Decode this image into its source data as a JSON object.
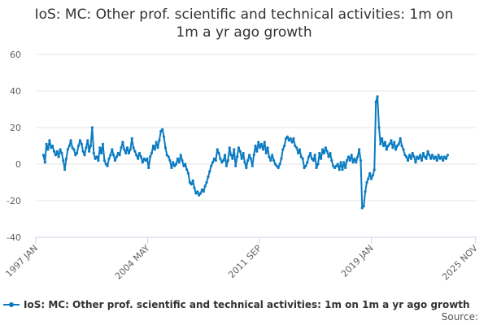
{
  "chart_data": {
    "type": "line",
    "title": "IoS: MC: Other prof. scientific and technical activities: 1m on 1m a yr ago growth",
    "title_lines": [
      "IoS: MC: Other prof. scientific and technical activities: 1m on",
      "1m a yr ago growth"
    ],
    "xlabel": "",
    "ylabel": "",
    "ylim": [
      -40,
      60
    ],
    "yticks": [
      60,
      40,
      20,
      0,
      -20,
      -40
    ],
    "xlim": [
      1997.0,
      2025.9
    ],
    "xticks": [
      {
        "label": "1997 JAN",
        "x": 1997.0
      },
      {
        "label": "2004 MAY",
        "x": 2004.33
      },
      {
        "label": "2011 SEP",
        "x": 2011.67
      },
      {
        "label": "2019 JAN",
        "x": 2019.0
      },
      {
        "label": "2025 NOV",
        "x": 2025.83
      }
    ],
    "grid": true,
    "legend_position": "bottom-left",
    "line_color": "#0b7bc1",
    "series": [
      {
        "name": "IoS: MC: Other prof. scientific and technical activities: 1m on 1m a yr ago growth",
        "points": [
          [
            1997.5,
            5
          ],
          [
            1997.6,
            1
          ],
          [
            1997.7,
            11
          ],
          [
            1997.8,
            8
          ],
          [
            1997.9,
            13
          ],
          [
            1998.0,
            9
          ],
          [
            1998.1,
            10
          ],
          [
            1998.2,
            7
          ],
          [
            1998.3,
            5
          ],
          [
            1998.4,
            7
          ],
          [
            1998.5,
            4
          ],
          [
            1998.6,
            8
          ],
          [
            1998.7,
            6
          ],
          [
            1998.8,
            2
          ],
          [
            1998.9,
            -3
          ],
          [
            1999.0,
            3
          ],
          [
            1999.1,
            8
          ],
          [
            1999.2,
            10
          ],
          [
            1999.3,
            13
          ],
          [
            1999.4,
            9
          ],
          [
            1999.5,
            8
          ],
          [
            1999.6,
            5
          ],
          [
            1999.7,
            6
          ],
          [
            1999.8,
            10
          ],
          [
            1999.9,
            13
          ],
          [
            2000.0,
            11
          ],
          [
            2000.1,
            7
          ],
          [
            2000.2,
            5
          ],
          [
            2000.3,
            9
          ],
          [
            2000.4,
            13
          ],
          [
            2000.5,
            7
          ],
          [
            2000.6,
            10
          ],
          [
            2000.7,
            20
          ],
          [
            2000.8,
            6
          ],
          [
            2000.9,
            3
          ],
          [
            2001.0,
            4
          ],
          [
            2001.1,
            2
          ],
          [
            2001.2,
            9
          ],
          [
            2001.3,
            6
          ],
          [
            2001.4,
            11
          ],
          [
            2001.5,
            2
          ],
          [
            2001.6,
            0
          ],
          [
            2001.7,
            -1
          ],
          [
            2001.8,
            3
          ],
          [
            2001.9,
            5
          ],
          [
            2002.0,
            8
          ],
          [
            2002.1,
            5
          ],
          [
            2002.2,
            2
          ],
          [
            2002.3,
            4
          ],
          [
            2002.4,
            6
          ],
          [
            2002.5,
            5
          ],
          [
            2002.6,
            9
          ],
          [
            2002.7,
            12
          ],
          [
            2002.8,
            8
          ],
          [
            2002.9,
            6
          ],
          [
            2003.0,
            9
          ],
          [
            2003.1,
            6
          ],
          [
            2003.2,
            8
          ],
          [
            2003.3,
            14
          ],
          [
            2003.4,
            9
          ],
          [
            2003.5,
            7
          ],
          [
            2003.6,
            5
          ],
          [
            2003.7,
            3
          ],
          [
            2003.8,
            6
          ],
          [
            2003.9,
            4
          ],
          [
            2004.0,
            1
          ],
          [
            2004.1,
            3
          ],
          [
            2004.2,
            2
          ],
          [
            2004.3,
            3
          ],
          [
            2004.4,
            -2
          ],
          [
            2004.5,
            4
          ],
          [
            2004.6,
            6
          ],
          [
            2004.7,
            10
          ],
          [
            2004.8,
            8
          ],
          [
            2004.9,
            12
          ],
          [
            2005.0,
            9
          ],
          [
            2005.1,
            13
          ],
          [
            2005.2,
            18
          ],
          [
            2005.3,
            19
          ],
          [
            2005.4,
            15
          ],
          [
            2005.5,
            9
          ],
          [
            2005.6,
            5
          ],
          [
            2005.7,
            4
          ],
          [
            2005.8,
            2
          ],
          [
            2005.9,
            -2
          ],
          [
            2006.0,
            1
          ],
          [
            2006.1,
            -1
          ],
          [
            2006.2,
            0
          ],
          [
            2006.3,
            3
          ],
          [
            2006.4,
            1
          ],
          [
            2006.5,
            5
          ],
          [
            2006.6,
            2
          ],
          [
            2006.7,
            -1
          ],
          [
            2006.8,
            0
          ],
          [
            2006.9,
            -3
          ],
          [
            2007.0,
            -5
          ],
          [
            2007.1,
            -10
          ],
          [
            2007.2,
            -11
          ],
          [
            2007.3,
            -9
          ],
          [
            2007.4,
            -13
          ],
          [
            2007.5,
            -16
          ],
          [
            2007.6,
            -15
          ],
          [
            2007.7,
            -17
          ],
          [
            2007.8,
            -16
          ],
          [
            2007.9,
            -14
          ],
          [
            2008.0,
            -15
          ],
          [
            2008.1,
            -12
          ],
          [
            2008.2,
            -10
          ],
          [
            2008.3,
            -7
          ],
          [
            2008.4,
            -4
          ],
          [
            2008.5,
            -1
          ],
          [
            2008.6,
            1
          ],
          [
            2008.7,
            3
          ],
          [
            2008.8,
            2
          ],
          [
            2008.9,
            8
          ],
          [
            2009.0,
            6
          ],
          [
            2009.1,
            3
          ],
          [
            2009.2,
            1
          ],
          [
            2009.3,
            2
          ],
          [
            2009.4,
            5
          ],
          [
            2009.5,
            -1
          ],
          [
            2009.6,
            2
          ],
          [
            2009.7,
            9
          ],
          [
            2009.8,
            5
          ],
          [
            2009.9,
            3
          ],
          [
            2010.0,
            8
          ],
          [
            2010.1,
            -1
          ],
          [
            2010.2,
            4
          ],
          [
            2010.3,
            9
          ],
          [
            2010.4,
            7
          ],
          [
            2010.5,
            3
          ],
          [
            2010.6,
            6
          ],
          [
            2010.7,
            1
          ],
          [
            2010.8,
            -2
          ],
          [
            2010.9,
            2
          ],
          [
            2011.0,
            5
          ],
          [
            2011.1,
            3
          ],
          [
            2011.2,
            -1
          ],
          [
            2011.3,
            5
          ],
          [
            2011.4,
            10
          ],
          [
            2011.5,
            7
          ],
          [
            2011.6,
            12
          ],
          [
            2011.7,
            9
          ],
          [
            2011.8,
            11
          ],
          [
            2011.9,
            8
          ],
          [
            2012.0,
            12
          ],
          [
            2012.1,
            6
          ],
          [
            2012.2,
            9
          ],
          [
            2012.3,
            4
          ],
          [
            2012.4,
            2
          ],
          [
            2012.5,
            5
          ],
          [
            2012.6,
            2
          ],
          [
            2012.7,
            0
          ],
          [
            2012.8,
            -1
          ],
          [
            2012.9,
            -2
          ],
          [
            2013.0,
            0
          ],
          [
            2013.1,
            3
          ],
          [
            2013.2,
            8
          ],
          [
            2013.3,
            10
          ],
          [
            2013.4,
            14
          ],
          [
            2013.5,
            15
          ],
          [
            2013.6,
            13
          ],
          [
            2013.7,
            14
          ],
          [
            2013.8,
            12
          ],
          [
            2013.9,
            14
          ],
          [
            2014.0,
            10
          ],
          [
            2014.1,
            9
          ],
          [
            2014.2,
            6
          ],
          [
            2014.3,
            8
          ],
          [
            2014.4,
            4
          ],
          [
            2014.5,
            3
          ],
          [
            2014.6,
            -2
          ],
          [
            2014.7,
            -1
          ],
          [
            2014.8,
            1
          ],
          [
            2014.9,
            4
          ],
          [
            2015.0,
            6
          ],
          [
            2015.1,
            3
          ],
          [
            2015.2,
            2
          ],
          [
            2015.3,
            5
          ],
          [
            2015.4,
            -2
          ],
          [
            2015.5,
            0
          ],
          [
            2015.6,
            6
          ],
          [
            2015.7,
            3
          ],
          [
            2015.8,
            8
          ],
          [
            2015.9,
            6
          ],
          [
            2016.0,
            9
          ],
          [
            2016.1,
            7
          ],
          [
            2016.2,
            4
          ],
          [
            2016.3,
            6
          ],
          [
            2016.4,
            2
          ],
          [
            2016.5,
            -1
          ],
          [
            2016.6,
            -2
          ],
          [
            2016.7,
            -1
          ],
          [
            2016.8,
            0
          ],
          [
            2016.9,
            -3
          ],
          [
            2017.0,
            1
          ],
          [
            2017.1,
            -3
          ],
          [
            2017.2,
            1
          ],
          [
            2017.3,
            -2
          ],
          [
            2017.4,
            2
          ],
          [
            2017.5,
            4
          ],
          [
            2017.6,
            2
          ],
          [
            2017.7,
            5
          ],
          [
            2017.8,
            1
          ],
          [
            2017.9,
            3
          ],
          [
            2018.0,
            1
          ],
          [
            2018.1,
            4
          ],
          [
            2018.2,
            8
          ],
          [
            2018.3,
            2
          ],
          [
            2018.4,
            -24
          ],
          [
            2018.5,
            -23
          ],
          [
            2018.6,
            -15
          ],
          [
            2018.7,
            -10
          ],
          [
            2018.8,
            -8
          ],
          [
            2018.9,
            -5
          ],
          [
            2019.0,
            -8
          ],
          [
            2019.1,
            -6
          ],
          [
            2019.2,
            -3
          ],
          [
            2019.3,
            34
          ],
          [
            2019.4,
            37
          ],
          [
            2019.5,
            20
          ],
          [
            2019.6,
            11
          ],
          [
            2019.7,
            14
          ],
          [
            2019.8,
            10
          ],
          [
            2019.9,
            12
          ],
          [
            2020.0,
            8
          ],
          [
            2020.1,
            10
          ],
          [
            2020.2,
            11
          ],
          [
            2020.3,
            13
          ],
          [
            2020.4,
            9
          ],
          [
            2020.5,
            12
          ],
          [
            2020.6,
            8
          ],
          [
            2020.7,
            10
          ],
          [
            2020.8,
            11
          ],
          [
            2020.9,
            14
          ],
          [
            2021.0,
            10
          ],
          [
            2021.1,
            8
          ],
          [
            2021.2,
            5
          ],
          [
            2021.3,
            4
          ],
          [
            2021.4,
            2
          ],
          [
            2021.5,
            5
          ],
          [
            2021.6,
            3
          ],
          [
            2021.7,
            6
          ],
          [
            2021.8,
            4
          ],
          [
            2021.9,
            1
          ],
          [
            2022.0,
            4
          ],
          [
            2022.1,
            3
          ],
          [
            2022.2,
            5
          ],
          [
            2022.3,
            2
          ],
          [
            2022.4,
            6
          ],
          [
            2022.5,
            4
          ],
          [
            2022.6,
            3
          ],
          [
            2022.7,
            7
          ],
          [
            2022.8,
            5
          ],
          [
            2022.9,
            3
          ],
          [
            2023.0,
            5
          ],
          [
            2023.1,
            3
          ],
          [
            2023.2,
            4
          ],
          [
            2023.3,
            2
          ],
          [
            2023.4,
            5
          ],
          [
            2023.5,
            3
          ],
          [
            2023.6,
            4
          ],
          [
            2023.7,
            2
          ],
          [
            2023.8,
            4
          ],
          [
            2023.9,
            3
          ],
          [
            2024.0,
            5
          ]
        ]
      }
    ],
    "legend_label": "IoS: MC: Other prof. scientific and technical activities: 1m on 1m a yr ago growth",
    "source_label": "Source:"
  }
}
